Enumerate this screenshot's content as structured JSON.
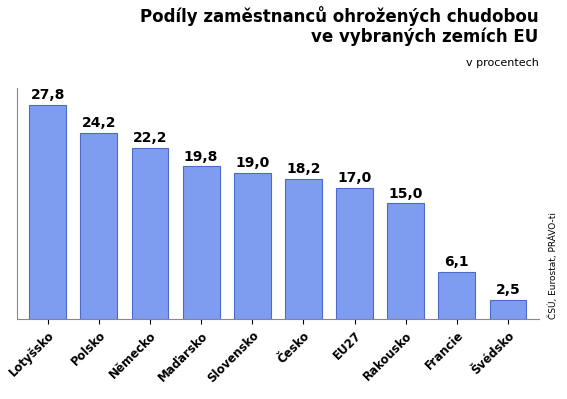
{
  "chart_data": {
    "type": "bar",
    "title": "Podíly zaměstnanců ohrožených chudobou\nve vybraných zemích EU",
    "subtitle": "v procentech",
    "source": "ČSÚ, Eurostat, PRÁVO-ti",
    "categories": [
      "Lotyšsko",
      "Polsko",
      "Německo",
      "Maďarsko",
      "Slovensko",
      "Česko",
      "EU27",
      "Rakousko",
      "Francie",
      "Švédsko"
    ],
    "values": [
      27.8,
      24.2,
      22.2,
      19.8,
      19.0,
      18.2,
      17.0,
      15.0,
      6.1,
      2.5
    ],
    "value_labels": [
      "27,8",
      "24,2",
      "22,2",
      "19,8",
      "19,0",
      "18,2",
      "17,0",
      "15,0",
      "6,1",
      "2,5"
    ],
    "data_labels": true,
    "tick_labels": "x",
    "grid": false,
    "color": "#7f9df0",
    "ylim": [
      0,
      30
    ]
  }
}
